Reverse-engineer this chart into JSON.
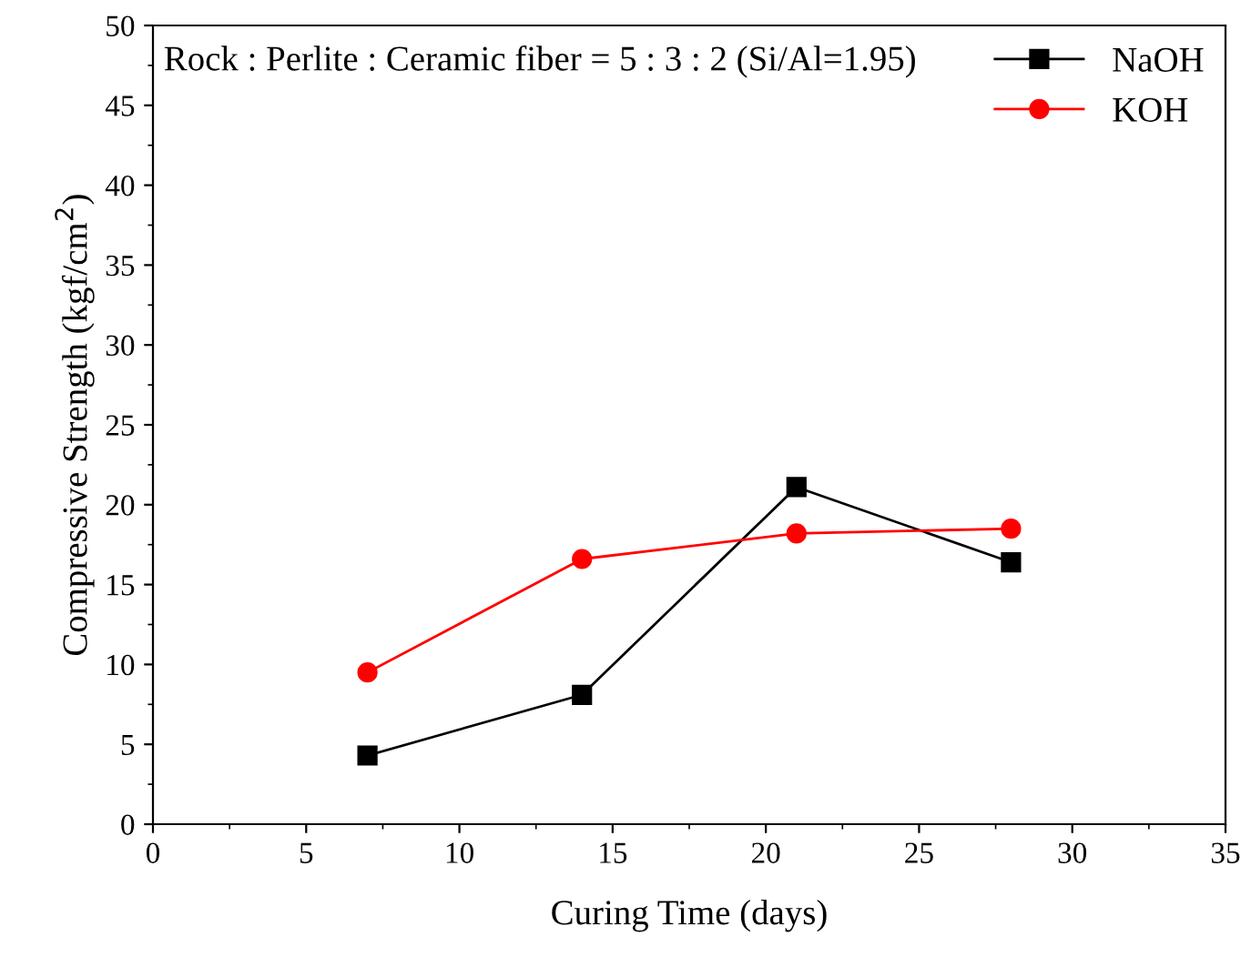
{
  "chart_data": {
    "type": "line",
    "xlabel": "Curing Time (days)",
    "ylabel": "Compressive Strength (kgf/cm$^{2}$)",
    "annotations": [
      "Rock : Perlite : Ceramic fiber = 5 : 3 : 2 (Si/Al=1.95)"
    ],
    "x": [
      7,
      14,
      21,
      28
    ],
    "series": [
      {
        "name": "NaOH",
        "color": "#000000",
        "marker": "square",
        "values": [
          4.3,
          8.1,
          21.1,
          16.4
        ]
      },
      {
        "name": "KOH",
        "color": "#ff0000",
        "marker": "circle",
        "values": [
          9.5,
          16.6,
          18.2,
          18.5
        ]
      }
    ],
    "xlim": [
      0,
      35
    ],
    "xticks": [
      0,
      5,
      10,
      15,
      20,
      25,
      30,
      35
    ],
    "ylim": [
      0,
      50
    ],
    "yticks": [
      0,
      5,
      10,
      15,
      20,
      25,
      30,
      35,
      40,
      45,
      50
    ],
    "grid": false,
    "legend": "top right",
    "line_style": "solid"
  }
}
